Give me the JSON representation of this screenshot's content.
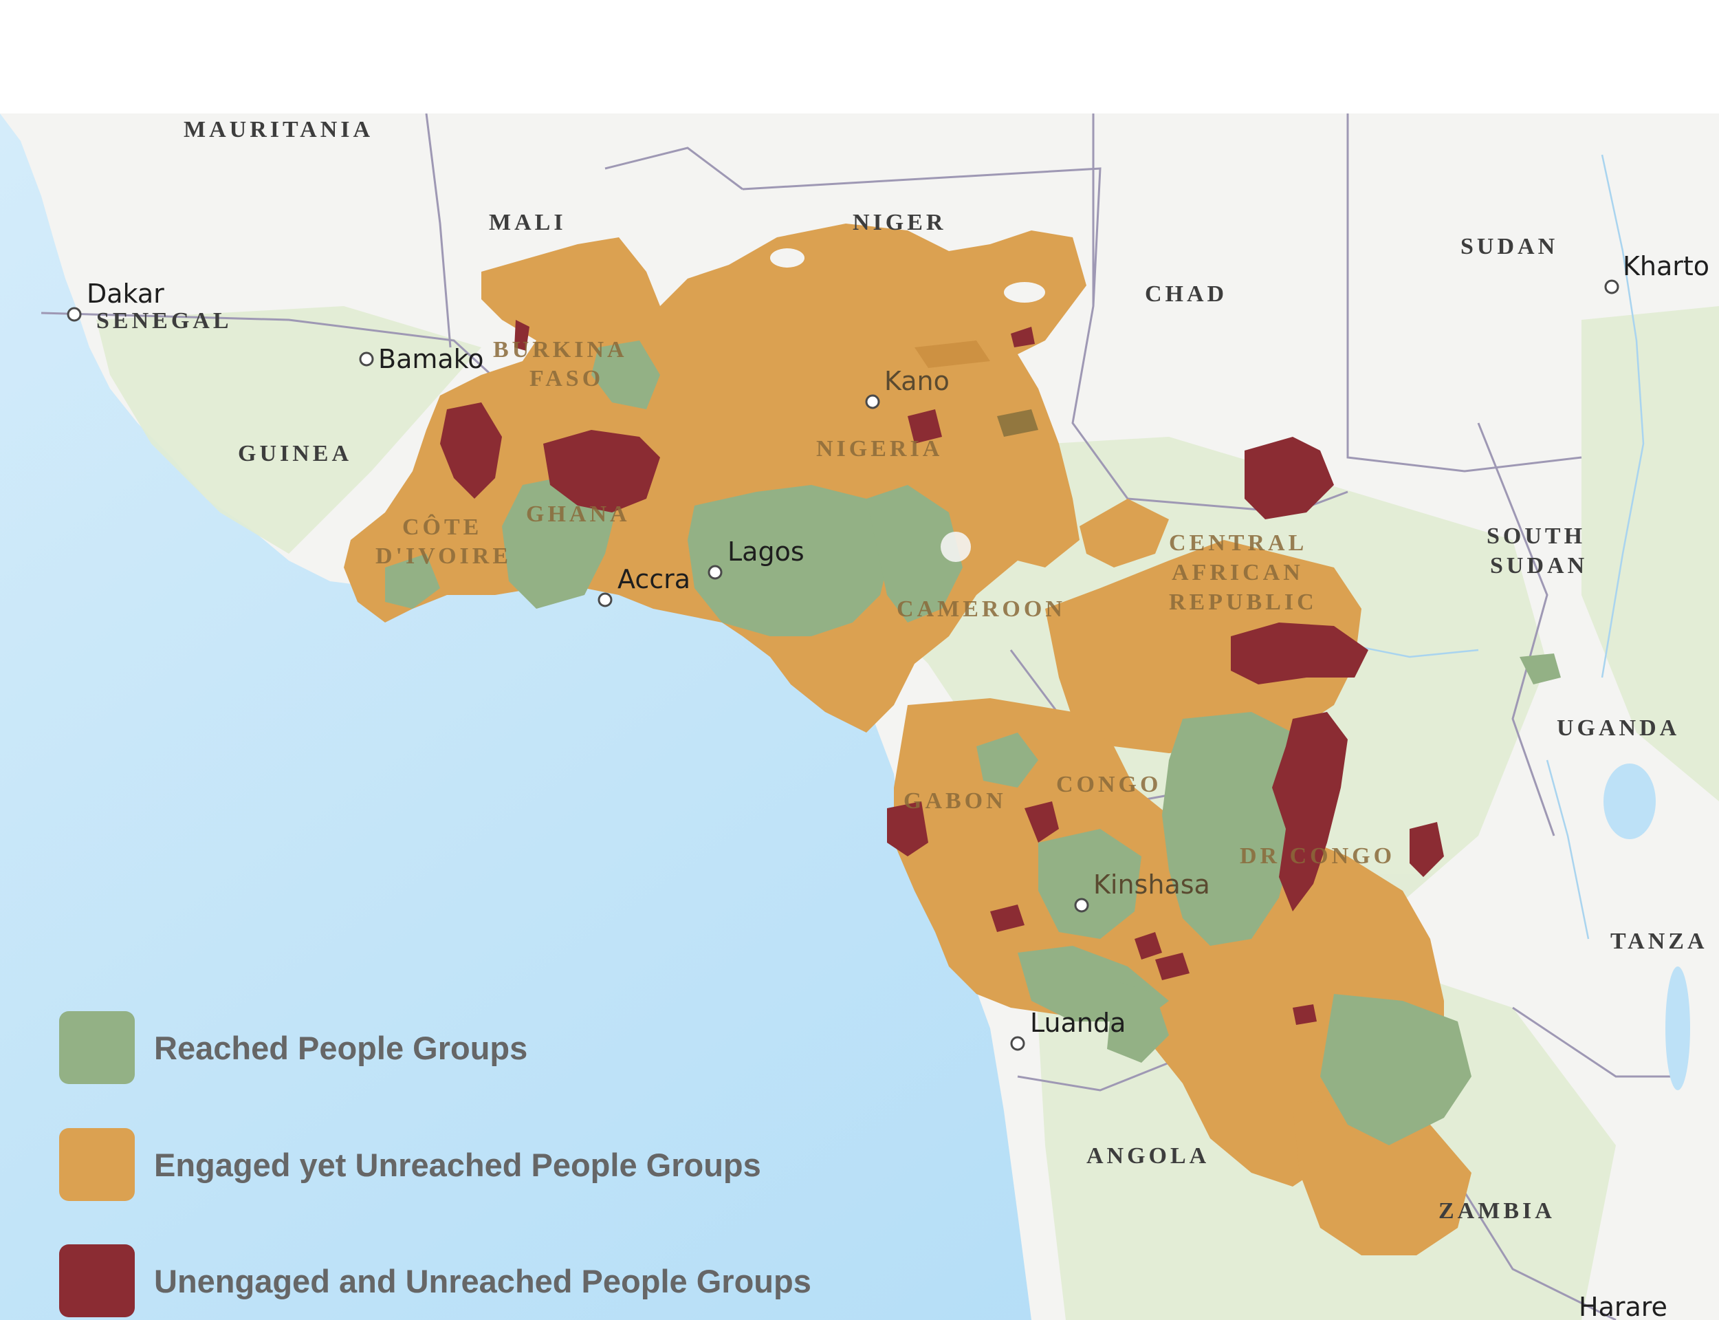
{
  "map": {
    "countries": {
      "mauritania": "MAURITANIA",
      "mali": "MALI",
      "niger": "NIGER",
      "chad": "CHAD",
      "sudan": "SUDAN",
      "senegal": "SENEGAL",
      "burkina_1": "BURKINA",
      "burkina_2": "FASO",
      "guinea": "GUINEA",
      "nigeria": "NIGERIA",
      "cote_1": "CÔTE",
      "cote_2": "D'IVOIRE",
      "ghana": "GHANA",
      "cameroon": "CAMEROON",
      "car_1": "CENTRAL",
      "car_2": "AFRICAN",
      "car_3": "REPUBLIC",
      "south_sudan_1": "SOUTH",
      "south_sudan_2": "SUDAN",
      "uganda": "UGANDA",
      "gabon": "GABON",
      "congo": "CONGO",
      "dr_congo": "DR CONGO",
      "tanzania": "TANZA",
      "angola": "ANGOLA",
      "zambia": "ZAMBIA"
    },
    "cities": {
      "dakar": "Dakar",
      "bamako": "Bamako",
      "kano": "Kano",
      "lagos": "Lagos",
      "accra": "Accra",
      "kinshasa": "Kinshasa",
      "luanda": "Luanda",
      "khartoum": "Kharto",
      "harare": "Harare"
    }
  },
  "legend": {
    "items": [
      {
        "label": "Reached People Groups",
        "color": "#93b185"
      },
      {
        "label": "Engaged yet Unreached People Groups",
        "color": "#dba151"
      },
      {
        "label": "Unengaged and Unreached People Groups",
        "color": "#8b2c33"
      }
    ]
  },
  "colors": {
    "ocean": "#bde1f7",
    "land": "#f4f4f2",
    "vegetation": "#e1ecd3",
    "border": "#9e98b4"
  }
}
